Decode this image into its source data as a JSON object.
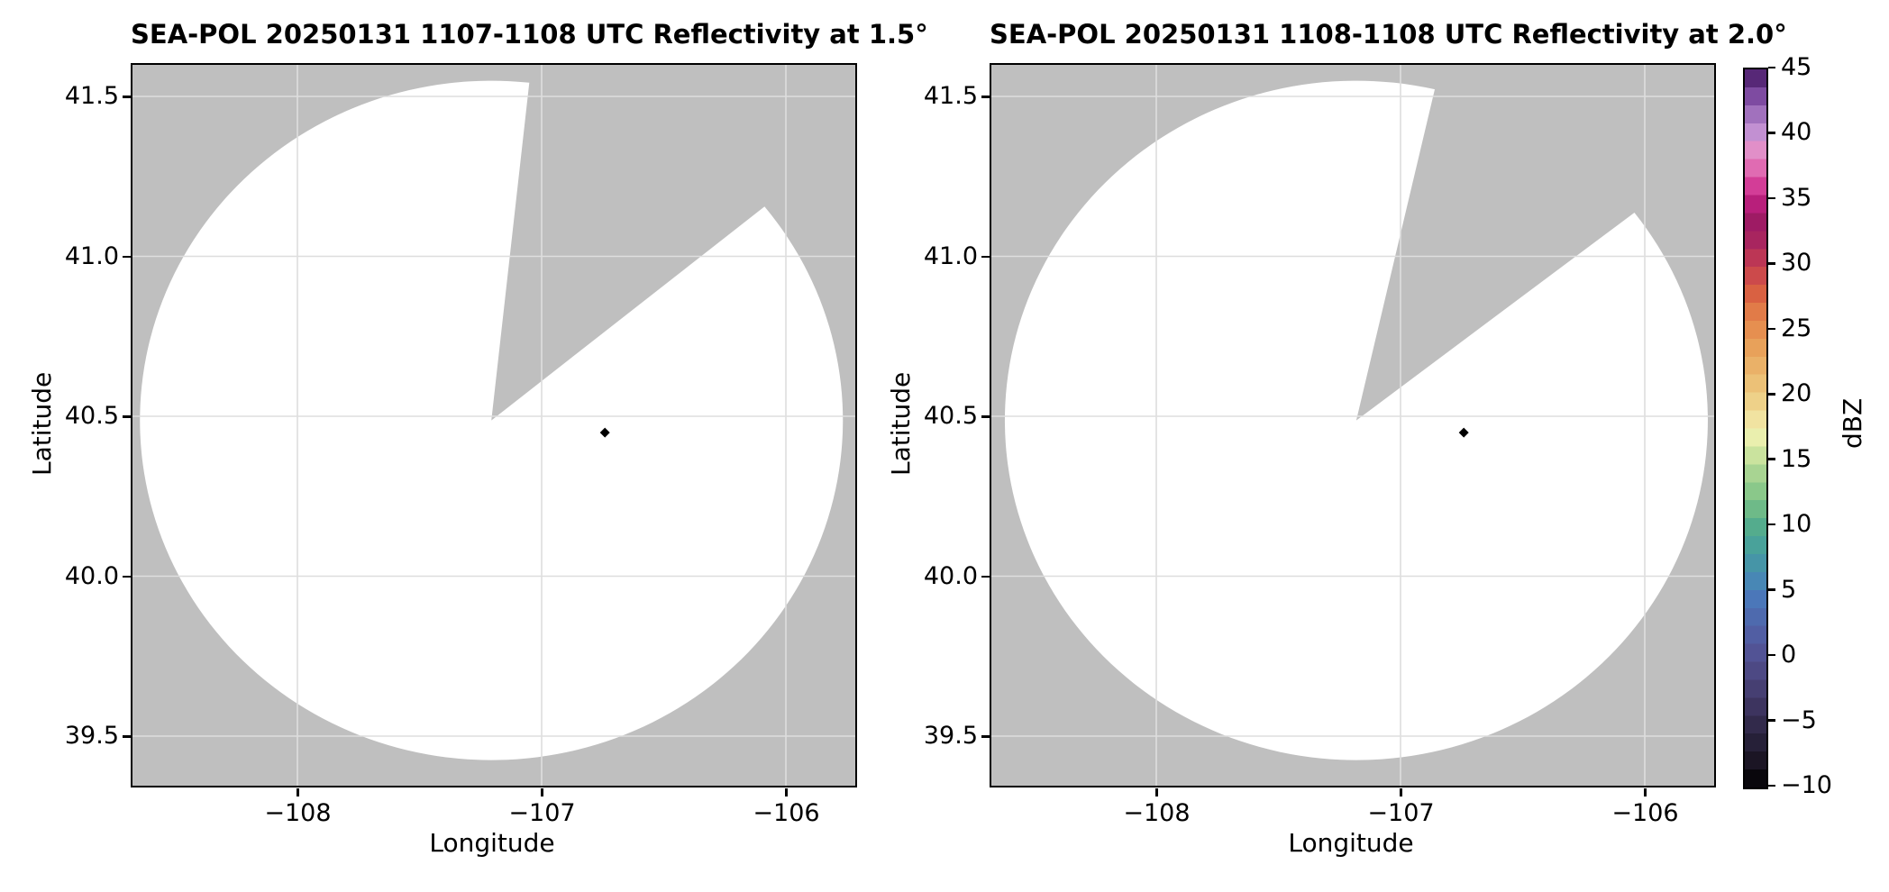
{
  "figure": {
    "background": "#ffffff",
    "nodata_color": "#bfbfbf",
    "data_fill_color": "#ffffff",
    "gridline_color": "#dedede",
    "frame_color": "#000000",
    "marker_color": "#000000"
  },
  "chart_data": {
    "type": "heatmap",
    "description": "Two side-by-side radar PPI reflectivity maps (SEA-POL radar) on lat/lon axes. Radar coverage disk shown white (no echoes above color scale) over gray no-data background, with a blocked/missing azimuth sector rendered gray. A single black diamond marker appears in each panel. Shared discrete dBZ colorbar at right.",
    "panels": [
      {
        "title": "SEA-POL 20250131 1107-1108 UTC Reflectivity at 1.5°",
        "xlabel": "Longitude",
        "ylabel": "Latitude",
        "axes": {
          "lon_min": -108.675,
          "lon_max": -105.716,
          "lat_min": 39.345,
          "lat_max": 41.5985
        },
        "x_ticks": [
          -108,
          -107,
          -106
        ],
        "x_tick_labels": [
          "−108",
          "−107",
          "−106"
        ],
        "y_ticks": [
          41.5,
          41.0,
          40.5,
          40.0,
          39.5
        ],
        "y_tick_labels": [
          "41.5",
          "41.0",
          "40.5",
          "40.0",
          "39.5"
        ],
        "radar": {
          "center_lon": -107.206,
          "center_lat": 40.487,
          "radius_lon_deg": 1.439,
          "radius_lat_deg": 1.062,
          "blocked_azimuth_deg": [
            6.2,
            51.0
          ]
        },
        "marker": {
          "lon": -106.741,
          "lat": 40.449
        }
      },
      {
        "title": "SEA-POL 20250131 1108-1108 UTC Reflectivity at 2.0°",
        "xlabel": "Longitude",
        "ylabel": "Latitude",
        "axes": {
          "lon_min": -108.675,
          "lon_max": -105.716,
          "lat_min": 39.345,
          "lat_max": 41.5985
        },
        "x_ticks": [
          -108,
          -107,
          -106
        ],
        "x_tick_labels": [
          "−108",
          "−107",
          "−106"
        ],
        "y_ticks": [
          41.5,
          41.0,
          40.5,
          40.0,
          39.5
        ],
        "y_tick_labels": [
          "41.5",
          "41.0",
          "40.5",
          "40.0",
          "39.5"
        ],
        "radar": {
          "center_lon": -107.181,
          "center_lat": 40.487,
          "radius_lon_deg": 1.439,
          "radius_lat_deg": 1.062,
          "blocked_azimuth_deg": [
            12.9,
            52.3
          ]
        },
        "marker": {
          "lon": -106.741,
          "lat": 40.449
        }
      }
    ],
    "colorbar": {
      "label": "dBZ",
      "min": -10,
      "max": 45,
      "n_bands": 40,
      "ticks": [
        45,
        40,
        35,
        30,
        25,
        20,
        15,
        10,
        5,
        0,
        -5,
        -10
      ],
      "tick_labels": [
        "45",
        "40",
        "35",
        "30",
        "25",
        "20",
        "15",
        "10",
        "5",
        "0",
        "−5",
        "−10"
      ],
      "stops": [
        {
          "v": -10,
          "c": "#000000"
        },
        {
          "v": -8,
          "c": "#1a1523"
        },
        {
          "v": -6,
          "c": "#2b2440"
        },
        {
          "v": -4,
          "c": "#3c335c"
        },
        {
          "v": -2,
          "c": "#494278"
        },
        {
          "v": 0,
          "c": "#525092"
        },
        {
          "v": 2,
          "c": "#5160a6"
        },
        {
          "v": 4,
          "c": "#4b72b5"
        },
        {
          "v": 5,
          "c": "#4a7dbf"
        },
        {
          "v": 6,
          "c": "#4789b3"
        },
        {
          "v": 8,
          "c": "#459e9f"
        },
        {
          "v": 10,
          "c": "#54ac8c"
        },
        {
          "v": 12,
          "c": "#7cc286"
        },
        {
          "v": 14,
          "c": "#a6d391"
        },
        {
          "v": 15,
          "c": "#bfdf9a"
        },
        {
          "v": 16,
          "c": "#d8e8a4"
        },
        {
          "v": 17,
          "c": "#eef0b0"
        },
        {
          "v": 18,
          "c": "#f1e6a4"
        },
        {
          "v": 20,
          "c": "#edcb82"
        },
        {
          "v": 22,
          "c": "#eab56b"
        },
        {
          "v": 24,
          "c": "#e89d57"
        },
        {
          "v": 26,
          "c": "#e4834a"
        },
        {
          "v": 28,
          "c": "#d85e41"
        },
        {
          "v": 30,
          "c": "#c43d51"
        },
        {
          "v": 32,
          "c": "#a7245f"
        },
        {
          "v": 33,
          "c": "#991a60"
        },
        {
          "v": 34,
          "c": "#a91c6e"
        },
        {
          "v": 35,
          "c": "#bf2181"
        },
        {
          "v": 36,
          "c": "#d23b96"
        },
        {
          "v": 37,
          "c": "#dd5daa"
        },
        {
          "v": 38,
          "c": "#e47ebd"
        },
        {
          "v": 39,
          "c": "#e093cb"
        },
        {
          "v": 40,
          "c": "#c794d4"
        },
        {
          "v": 41,
          "c": "#ae7fc8"
        },
        {
          "v": 42,
          "c": "#9766b5"
        },
        {
          "v": 43,
          "c": "#7c49a0"
        },
        {
          "v": 44,
          "c": "#5f2d81"
        },
        {
          "v": 45,
          "c": "#461c61"
        }
      ]
    }
  }
}
